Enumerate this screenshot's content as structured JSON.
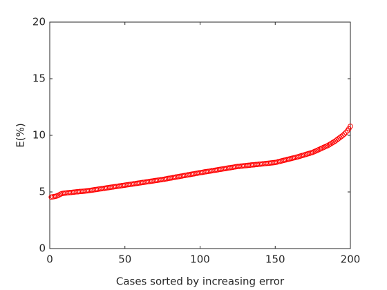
{
  "chart_data": {
    "type": "scatter",
    "xlabel": "Cases sorted by increasing error",
    "ylabel": "E(%)",
    "xlim": [
      0,
      200
    ],
    "ylim": [
      0,
      20
    ],
    "xticks": [
      0,
      50,
      100,
      150,
      200
    ],
    "yticks": [
      0,
      5,
      10,
      15,
      20
    ],
    "grid": false,
    "series": [
      {
        "color": "#ff0000",
        "x": [
          1,
          2,
          3,
          4,
          5,
          6,
          7,
          8,
          9,
          10,
          11,
          12,
          13,
          14,
          15,
          16,
          17,
          18,
          19,
          20,
          21,
          22,
          23,
          24,
          25,
          26,
          27,
          28,
          29,
          30,
          31,
          32,
          33,
          34,
          35,
          36,
          37,
          38,
          39,
          40,
          41,
          42,
          43,
          44,
          45,
          46,
          47,
          48,
          49,
          50,
          51,
          52,
          53,
          54,
          55,
          56,
          57,
          58,
          59,
          60,
          61,
          62,
          63,
          64,
          65,
          66,
          67,
          68,
          69,
          70,
          71,
          72,
          73,
          74,
          75,
          76,
          77,
          78,
          79,
          80,
          81,
          82,
          83,
          84,
          85,
          86,
          87,
          88,
          89,
          90,
          91,
          92,
          93,
          94,
          95,
          96,
          97,
          98,
          99,
          100,
          101,
          102,
          103,
          104,
          105,
          106,
          107,
          108,
          109,
          110,
          111,
          112,
          113,
          114,
          115,
          116,
          117,
          118,
          119,
          120,
          121,
          122,
          123,
          124,
          125,
          126,
          127,
          128,
          129,
          130,
          131,
          132,
          133,
          134,
          135,
          136,
          137,
          138,
          139,
          140,
          141,
          142,
          143,
          144,
          145,
          146,
          147,
          148,
          149,
          150,
          151,
          152,
          153,
          154,
          155,
          156,
          157,
          158,
          159,
          160,
          161,
          162,
          163,
          164,
          165,
          166,
          167,
          168,
          169,
          170,
          171,
          172,
          173,
          174,
          175,
          176,
          177,
          178,
          179,
          180,
          181,
          182,
          183,
          184,
          185,
          186,
          187,
          188,
          189,
          190,
          191,
          192,
          193,
          194,
          195,
          196,
          197,
          198,
          199,
          200
        ],
        "values": [
          4.55,
          4.57,
          4.59,
          4.62,
          4.66,
          4.72,
          4.8,
          4.85,
          4.88,
          4.9,
          4.91,
          4.93,
          4.94,
          4.95,
          4.97,
          4.98,
          5.0,
          5.01,
          5.02,
          5.04,
          5.05,
          5.06,
          5.07,
          5.09,
          5.1,
          5.12,
          5.14,
          5.16,
          5.18,
          5.2,
          5.22,
          5.24,
          5.26,
          5.28,
          5.3,
          5.32,
          5.34,
          5.36,
          5.38,
          5.4,
          5.42,
          5.44,
          5.46,
          5.48,
          5.5,
          5.52,
          5.54,
          5.56,
          5.58,
          5.6,
          5.62,
          5.64,
          5.66,
          5.68,
          5.7,
          5.72,
          5.74,
          5.76,
          5.78,
          5.8,
          5.82,
          5.84,
          5.86,
          5.88,
          5.9,
          5.92,
          5.94,
          5.96,
          5.98,
          6.0,
          6.02,
          6.04,
          6.06,
          6.08,
          6.1,
          6.12,
          6.15,
          6.17,
          6.2,
          6.22,
          6.24,
          6.27,
          6.29,
          6.32,
          6.34,
          6.36,
          6.39,
          6.41,
          6.44,
          6.46,
          6.48,
          6.51,
          6.53,
          6.56,
          6.58,
          6.6,
          6.63,
          6.65,
          6.68,
          6.7,
          6.72,
          6.74,
          6.77,
          6.79,
          6.81,
          6.83,
          6.85,
          6.88,
          6.9,
          6.92,
          6.94,
          6.96,
          6.99,
          7.01,
          7.03,
          7.05,
          7.07,
          7.1,
          7.12,
          7.14,
          7.16,
          7.18,
          7.21,
          7.23,
          7.25,
          7.26,
          7.28,
          7.29,
          7.31,
          7.32,
          7.33,
          7.35,
          7.36,
          7.38,
          7.39,
          7.4,
          7.42,
          7.43,
          7.45,
          7.46,
          7.47,
          7.49,
          7.5,
          7.52,
          7.53,
          7.54,
          7.56,
          7.57,
          7.59,
          7.6,
          7.63,
          7.67,
          7.7,
          7.73,
          7.77,
          7.8,
          7.83,
          7.87,
          7.9,
          7.93,
          7.97,
          8.0,
          8.03,
          8.07,
          8.1,
          8.14,
          8.18,
          8.22,
          8.26,
          8.3,
          8.34,
          8.38,
          8.42,
          8.46,
          8.5,
          8.56,
          8.62,
          8.68,
          8.74,
          8.8,
          8.86,
          8.92,
          8.98,
          9.04,
          9.1,
          9.18,
          9.26,
          9.34,
          9.42,
          9.5,
          9.6,
          9.7,
          9.8,
          9.9,
          10.0,
          10.12,
          10.25,
          10.4,
          10.58,
          10.8
        ]
      }
    ]
  }
}
